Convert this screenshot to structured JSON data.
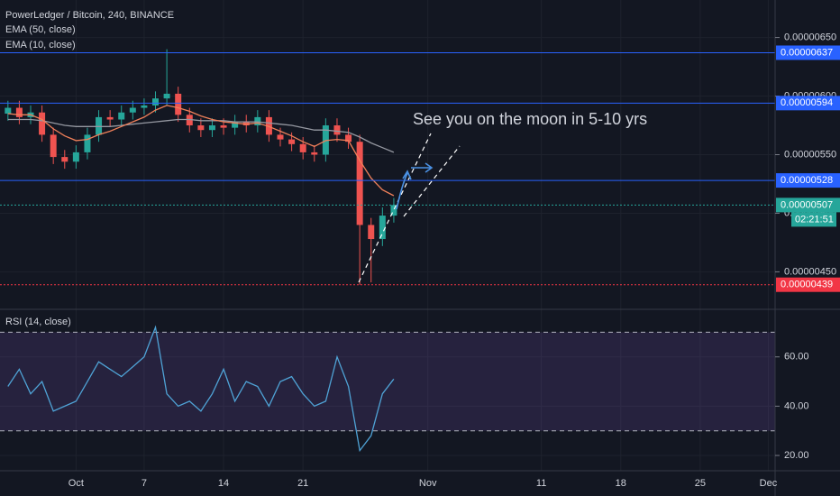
{
  "chart_data": [
    {
      "type": "candlestick",
      "title": "PowerLedger / Bitcoin, 240, BINANCE",
      "x": [
        -6,
        -5,
        -4,
        -3,
        -2,
        -1,
        0,
        1,
        2,
        3,
        4,
        5,
        6,
        7,
        8,
        9,
        10,
        11,
        12,
        13,
        14,
        15,
        16,
        17,
        18,
        19,
        20,
        21,
        22,
        23,
        24,
        25,
        26,
        27,
        28
      ],
      "open": [
        5.85e-06,
        5.9e-06,
        5.82e-06,
        5.86e-06,
        5.67e-06,
        5.48e-06,
        5.44e-06,
        5.52e-06,
        5.67e-06,
        5.82e-06,
        5.8e-06,
        5.86e-06,
        5.9e-06,
        5.92e-06,
        5.98e-06,
        6.02e-06,
        5.84e-06,
        5.75e-06,
        5.71e-06,
        5.75e-06,
        5.73e-06,
        5.78e-06,
        5.75e-06,
        5.82e-06,
        5.67e-06,
        5.63e-06,
        5.59e-06,
        5.52e-06,
        5.5e-06,
        5.75e-06,
        5.67e-06,
        5.61e-06,
        4.9e-06,
        4.78e-06,
        4.98e-06
      ],
      "high": [
        5.96e-06,
        5.96e-06,
        5.92e-06,
        5.92e-06,
        5.73e-06,
        5.54e-06,
        5.58e-06,
        5.73e-06,
        5.88e-06,
        5.88e-06,
        5.92e-06,
        5.96e-06,
        5.98e-06,
        6.04e-06,
        6.4e-06,
        6.08e-06,
        5.9e-06,
        5.81e-06,
        5.81e-06,
        5.81e-06,
        5.84e-06,
        5.84e-06,
        5.88e-06,
        5.88e-06,
        5.73e-06,
        5.69e-06,
        5.65e-06,
        5.58e-06,
        5.81e-06,
        5.81e-06,
        5.73e-06,
        5.67e-06,
        4.96e-06,
        5.05e-06,
        5.13e-06
      ],
      "low": [
        5.79e-06,
        5.76e-06,
        5.76e-06,
        5.61e-06,
        5.42e-06,
        5.38e-06,
        5.38e-06,
        5.46e-06,
        5.61e-06,
        5.74e-06,
        5.74e-06,
        5.8e-06,
        5.84e-06,
        5.86e-06,
        5.92e-06,
        5.78e-06,
        5.69e-06,
        5.65e-06,
        5.65e-06,
        5.67e-06,
        5.67e-06,
        5.69e-06,
        5.69e-06,
        5.61e-06,
        5.57e-06,
        5.53e-06,
        5.46e-06,
        5.44e-06,
        5.44e-06,
        5.61e-06,
        5.55e-06,
        4.39e-06,
        4.41e-06,
        4.72e-06,
        4.92e-06
      ],
      "close": [
        5.9e-06,
        5.82e-06,
        5.86e-06,
        5.67e-06,
        5.48e-06,
        5.44e-06,
        5.52e-06,
        5.67e-06,
        5.82e-06,
        5.8e-06,
        5.86e-06,
        5.9e-06,
        5.92e-06,
        5.98e-06,
        6.02e-06,
        5.84e-06,
        5.75e-06,
        5.71e-06,
        5.75e-06,
        5.73e-06,
        5.78e-06,
        5.75e-06,
        5.82e-06,
        5.67e-06,
        5.63e-06,
        5.59e-06,
        5.52e-06,
        5.5e-06,
        5.75e-06,
        5.67e-06,
        5.61e-06,
        4.9e-06,
        4.78e-06,
        4.98e-06,
        5.07e-06
      ],
      "up_color": "#26a69a",
      "down_color": "#ef5350",
      "series": [
        {
          "name": "EMA (50, close)",
          "color": "#9598a1",
          "values": [
            5.8e-06,
            5.8e-06,
            5.8e-06,
            5.79e-06,
            5.77e-06,
            5.75e-06,
            5.74e-06,
            5.74e-06,
            5.74e-06,
            5.74e-06,
            5.75e-06,
            5.76e-06,
            5.77e-06,
            5.78e-06,
            5.79e-06,
            5.8e-06,
            5.8e-06,
            5.79e-06,
            5.79e-06,
            5.79e-06,
            5.78e-06,
            5.78e-06,
            5.78e-06,
            5.77e-06,
            5.76e-06,
            5.75e-06,
            5.73e-06,
            5.71e-06,
            5.71e-06,
            5.7e-06,
            5.69e-06,
            5.65e-06,
            5.6e-06,
            5.56e-06,
            5.52e-06
          ]
        },
        {
          "name": "EMA (10, close)",
          "color": "#f0805a",
          "values": [
            5.85e-06,
            5.84e-06,
            5.84e-06,
            5.8e-06,
            5.72e-06,
            5.66e-06,
            5.62e-06,
            5.63e-06,
            5.67e-06,
            5.7e-06,
            5.74e-06,
            5.78e-06,
            5.82e-06,
            5.88e-06,
            5.92e-06,
            5.9e-06,
            5.87e-06,
            5.83e-06,
            5.8e-06,
            5.78e-06,
            5.77e-06,
            5.76e-06,
            5.77e-06,
            5.74e-06,
            5.7e-06,
            5.66e-06,
            5.61e-06,
            5.57e-06,
            5.62e-06,
            5.63e-06,
            5.62e-06,
            5.45e-06,
            5.3e-06,
            5.2e-06,
            5.15e-06
          ]
        }
      ],
      "ylim": [
        4.18e-06,
        6.82e-06
      ],
      "yticks": [
        {
          "value": 6.5e-06,
          "label": "0.00000650"
        },
        {
          "value": 6e-06,
          "label": "0.00000600"
        },
        {
          "value": 5.5e-06,
          "label": "0.00000550"
        },
        {
          "value": 5e-06,
          "label": "0.00000500"
        },
        {
          "value": 4.5e-06,
          "label": "0.00000450"
        }
      ],
      "xlim": [
        -6.7,
        61.6
      ],
      "xticks": [
        {
          "value": 0,
          "label": "Oct"
        },
        {
          "value": 6,
          "label": "7"
        },
        {
          "value": 13,
          "label": "14"
        },
        {
          "value": 20,
          "label": "21"
        },
        {
          "value": 31,
          "label": "Nov"
        },
        {
          "value": 41,
          "label": "11"
        },
        {
          "value": 48,
          "label": "18"
        },
        {
          "value": 55,
          "label": "25"
        },
        {
          "value": 61,
          "label": "Dec"
        }
      ],
      "levels": [
        {
          "value": 6.37e-06,
          "label": "0.00000637",
          "color": "#2962ff"
        },
        {
          "value": 5.94e-06,
          "label": "0.00000594",
          "color": "#2962ff"
        },
        {
          "value": 5.28e-06,
          "label": "0.00000528",
          "color": "#2962ff"
        },
        {
          "value": 5.07e-06,
          "label": "0.00000507",
          "color": "#26a69a"
        },
        {
          "value": 4.39e-06,
          "label": "0.00000439",
          "color": "#f23645"
        }
      ],
      "countdown": "02:21:51",
      "annotation": "See you on the moon in 5-10 yrs"
    },
    {
      "type": "line",
      "title": "RSI (14, close)",
      "x": [
        -6,
        -5,
        -4,
        -3,
        -2,
        -1,
        0,
        1,
        2,
        3,
        4,
        5,
        6,
        7,
        8,
        9,
        10,
        11,
        12,
        13,
        14,
        15,
        16,
        17,
        18,
        19,
        20,
        21,
        22,
        23,
        24,
        25,
        26,
        27,
        28
      ],
      "series": [
        {
          "color": "#4fa3d6",
          "values": [
            48,
            55,
            45,
            50,
            38,
            40,
            42,
            50,
            58,
            55,
            52,
            56,
            60,
            72,
            45,
            40,
            42,
            38,
            45,
            55,
            42,
            50,
            48,
            40,
            50,
            52,
            45,
            40,
            42,
            60,
            48,
            22,
            28,
            45,
            51
          ]
        }
      ],
      "ylim": [
        13.8,
        79.3
      ],
      "yticks": [
        {
          "value": 60,
          "label": "60.00"
        },
        {
          "value": 40,
          "label": "40.00"
        },
        {
          "value": 20,
          "label": "20.00"
        }
      ],
      "band": [
        70,
        30
      ],
      "xlim": [
        -6.7,
        61.6
      ]
    }
  ]
}
